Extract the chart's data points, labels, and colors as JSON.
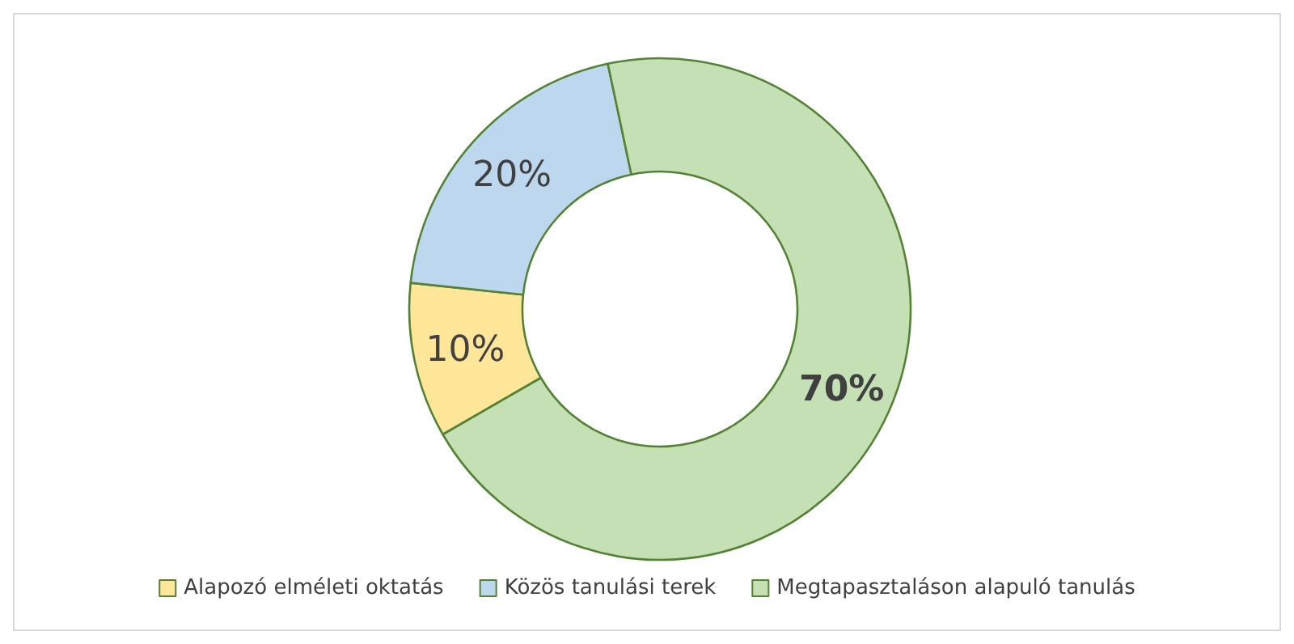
{
  "chart_data": {
    "type": "donut",
    "categories": [
      "Alapozó elméleti oktatás",
      "Közös tanulási terek",
      "Megtapasztaláson alapuló tanulás"
    ],
    "values": [
      10,
      20,
      70
    ],
    "colors": [
      "#ffe699",
      "#bdd7ee",
      "#c5e0b4"
    ],
    "value_labels": [
      "10%",
      "20%",
      "70%"
    ],
    "legend": "bottom"
  }
}
